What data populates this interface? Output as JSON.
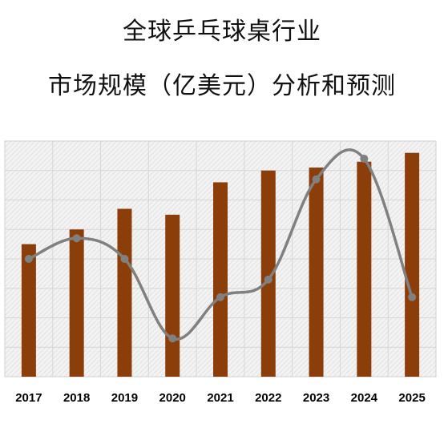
{
  "header": {
    "title_line1": "全球乒乓球桌行业",
    "title_line2": "市场规模（亿美元）分析和预测"
  },
  "chart_data": {
    "type": "bar",
    "categories": [
      "2017",
      "2018",
      "2019",
      "2020",
      "2021",
      "2022",
      "2023",
      "2024",
      "2025"
    ],
    "series": [
      {
        "type": "bar",
        "values": [
          4.5,
          5.0,
          5.7,
          5.5,
          6.6,
          7.0,
          7.1,
          7.3,
          7.6
        ],
        "color": "#8B3D0A"
      },
      {
        "type": "line",
        "values": [
          4.0,
          4.7,
          4.0,
          1.3,
          2.7,
          3.3,
          6.7,
          7.4,
          2.7
        ],
        "color": "#808080",
        "smooth": true
      }
    ],
    "ylim": [
      0,
      8
    ],
    "grid": true,
    "legend": "none",
    "y_tick_labels_shown": false,
    "background": "#f3f3f3"
  }
}
